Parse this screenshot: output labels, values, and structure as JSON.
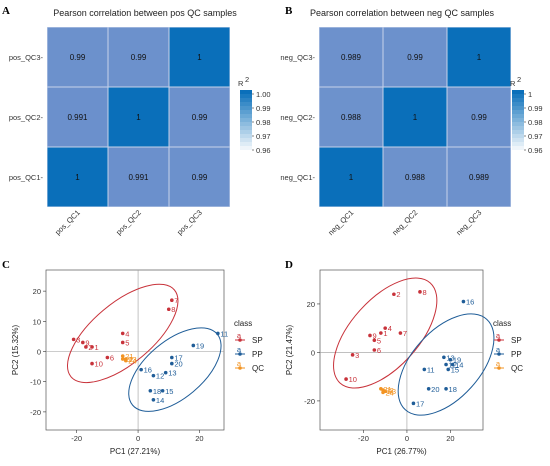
{
  "panels": {
    "A": {
      "letter": "A",
      "title": "Pearson correlation between pos QC samples"
    },
    "B": {
      "letter": "B",
      "title": "Pearson correlation between neg QC samples"
    },
    "C": {
      "letter": "C"
    },
    "D": {
      "letter": "D"
    }
  },
  "colors": {
    "hm_high": "#0a6fba",
    "hm_low": "#6f93cd",
    "hm_grid": "#c7d3ea",
    "SP": "#c8323a",
    "PP": "#1f5d98",
    "QC": "#f29322",
    "refline": "#9a9a9a"
  },
  "chart_data": [
    {
      "id": "heatmap-pos",
      "type": "heatmap",
      "title": "Pearson correlation between pos QC samples",
      "x_labels": [
        "pos_QC1",
        "pos_QC2",
        "pos_QC3"
      ],
      "y_labels": [
        "pos_QC3",
        "pos_QC2",
        "pos_QC1"
      ],
      "values": [
        [
          "0.99",
          "0.99",
          "1"
        ],
        [
          "0.991",
          "1",
          "0.99"
        ],
        [
          "1",
          "0.991",
          "0.99"
        ]
      ],
      "legend_title": "R2",
      "legend_ticks": [
        "1.00",
        "0.99",
        "0.98",
        "0.97",
        "0.96"
      ],
      "range": [
        0.96,
        1.0
      ]
    },
    {
      "id": "heatmap-neg",
      "type": "heatmap",
      "title": "Pearson correlation between neg QC samples",
      "x_labels": [
        "neg_QC1",
        "neg_QC2",
        "neg_QC3"
      ],
      "y_labels": [
        "neg_QC3",
        "neg_QC2",
        "neg_QC1"
      ],
      "values": [
        [
          "0.989",
          "0.99",
          "1"
        ],
        [
          "0.988",
          "1",
          "0.99"
        ],
        [
          "1",
          "0.988",
          "0.989"
        ]
      ],
      "legend_title": "R2",
      "legend_ticks": [
        "1",
        "0.99",
        "0.98",
        "0.97",
        "0.96"
      ],
      "range": [
        0.96,
        1.0
      ]
    },
    {
      "id": "pca-pos",
      "type": "scatter",
      "xlabel": "PC1 (27.21%)",
      "ylabel": "PC2 (15.32%)",
      "xlim": [
        -30,
        28
      ],
      "ylim": [
        -26,
        27
      ],
      "xticks": [
        -20,
        0,
        20
      ],
      "yticks": [
        20,
        10,
        0,
        -10,
        -20
      ],
      "legend_title": "class",
      "series": [
        {
          "name": "SP",
          "points": [
            {
              "label": "7",
              "x": 11,
              "y": 17
            },
            {
              "label": "8",
              "x": 10,
              "y": 14
            },
            {
              "label": "4",
              "x": -5,
              "y": 6
            },
            {
              "label": "5",
              "x": -5,
              "y": 3
            },
            {
              "label": "3",
              "x": -21,
              "y": 4
            },
            {
              "label": "9",
              "x": -18,
              "y": 3
            },
            {
              "label": "2",
              "x": -17,
              "y": 1.5
            },
            {
              "label": "1",
              "x": -15,
              "y": 1.5
            },
            {
              "label": "6",
              "x": -10,
              "y": -2
            },
            {
              "label": "10",
              "x": -15,
              "y": -4
            }
          ]
        },
        {
          "name": "PP",
          "points": [
            {
              "label": "11",
              "x": 26,
              "y": 6
            },
            {
              "label": "19",
              "x": 18,
              "y": 2
            },
            {
              "label": "17",
              "x": 11,
              "y": -2
            },
            {
              "label": "20",
              "x": 11,
              "y": -4
            },
            {
              "label": "16",
              "x": 1,
              "y": -6
            },
            {
              "label": "13",
              "x": 9,
              "y": -7
            },
            {
              "label": "12",
              "x": 5,
              "y": -8
            },
            {
              "label": "18",
              "x": 4,
              "y": -13
            },
            {
              "label": "15",
              "x": 8,
              "y": -13
            },
            {
              "label": "14",
              "x": 5,
              "y": -16
            }
          ]
        },
        {
          "name": "QC",
          "points": [
            {
              "label": "21",
              "x": -5,
              "y": -1.5
            },
            {
              "label": "22",
              "x": -5,
              "y": -2.5
            },
            {
              "label": "23",
              "x": -4,
              "y": -2.5
            },
            {
              "label": "24",
              "x": -4,
              "y": -3
            }
          ]
        }
      ],
      "ellipses": [
        {
          "series": "SP",
          "cx": -5,
          "cy": 6,
          "rx": 22,
          "ry": 10,
          "angle_deg": -40
        },
        {
          "series": "PP",
          "cx": 12,
          "cy": -6,
          "rx": 18,
          "ry": 9.5,
          "angle_deg": -40
        }
      ]
    },
    {
      "id": "pca-neg",
      "type": "scatter",
      "xlabel": "PC1 (26.77%)",
      "ylabel": "PC2 (21.47%)",
      "xlim": [
        -40,
        35
      ],
      "ylim": [
        -32,
        34
      ],
      "xticks": [
        -20,
        0,
        20
      ],
      "yticks": [
        20,
        0,
        -20
      ],
      "legend_title": "class",
      "series": [
        {
          "name": "SP",
          "points": [
            {
              "label": "2",
              "x": -6,
              "y": 24
            },
            {
              "label": "8",
              "x": 6,
              "y": 25
            },
            {
              "label": "4",
              "x": -10,
              "y": 10
            },
            {
              "label": "1",
              "x": -12,
              "y": 8
            },
            {
              "label": "7",
              "x": -3,
              "y": 8
            },
            {
              "label": "9",
              "x": -17,
              "y": 7
            },
            {
              "label": "5",
              "x": -15,
              "y": 5
            },
            {
              "label": "6",
              "x": -15,
              "y": 1
            },
            {
              "label": "3",
              "x": -25,
              "y": -1
            },
            {
              "label": "10",
              "x": -28,
              "y": -11
            }
          ]
        },
        {
          "name": "PP",
          "points": [
            {
              "label": "16",
              "x": 26,
              "y": 21
            },
            {
              "label": "13",
              "x": 17,
              "y": -2
            },
            {
              "label": "19",
              "x": 20,
              "y": -3
            },
            {
              "label": "12",
              "x": 18,
              "y": -5
            },
            {
              "label": "14",
              "x": 21,
              "y": -5
            },
            {
              "label": "11",
              "x": 8,
              "y": -7
            },
            {
              "label": "15",
              "x": 19,
              "y": -7
            },
            {
              "label": "20",
              "x": 10,
              "y": -15
            },
            {
              "label": "18",
              "x": 18,
              "y": -15
            },
            {
              "label": "17",
              "x": 3,
              "y": -21
            }
          ]
        },
        {
          "name": "QC",
          "points": [
            {
              "label": "21",
              "x": -12,
              "y": -15
            },
            {
              "label": "22",
              "x": -11,
              "y": -15.5
            },
            {
              "label": "23",
              "x": -10,
              "y": -16
            },
            {
              "label": "24",
              "x": -11,
              "y": -16.5
            }
          ]
        }
      ],
      "ellipses": [
        {
          "series": "SP",
          "cx": -10,
          "cy": 8,
          "rx": 31,
          "ry": 14,
          "angle_deg": -48
        },
        {
          "series": "PP",
          "cx": 18,
          "cy": -5,
          "rx": 28,
          "ry": 14,
          "angle_deg": -48
        }
      ]
    }
  ]
}
